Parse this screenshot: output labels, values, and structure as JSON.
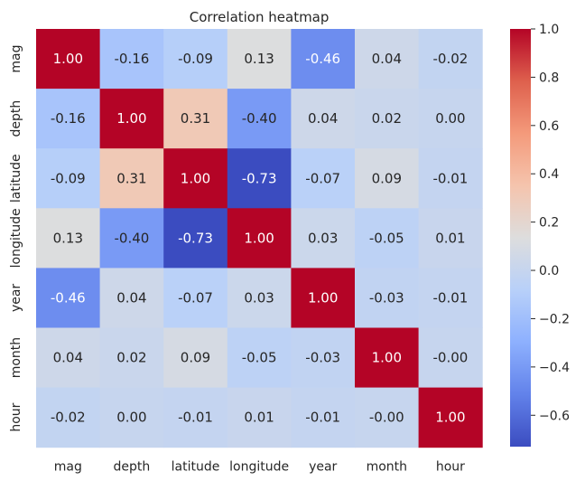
{
  "chart_data": {
    "type": "heatmap",
    "title": "Correlation heatmap",
    "xlabel": "",
    "ylabel": "",
    "x_categories": [
      "mag",
      "depth",
      "latitude",
      "longitude",
      "year",
      "month",
      "hour"
    ],
    "y_categories": [
      "mag",
      "depth",
      "latitude",
      "longitude",
      "year",
      "month",
      "hour"
    ],
    "values": [
      [
        1.0,
        -0.16,
        -0.09,
        0.13,
        -0.46,
        0.04,
        -0.02
      ],
      [
        -0.16,
        1.0,
        0.31,
        -0.4,
        0.04,
        0.02,
        0.0
      ],
      [
        -0.09,
        0.31,
        1.0,
        -0.73,
        -0.07,
        0.09,
        -0.01
      ],
      [
        0.13,
        -0.4,
        -0.73,
        1.0,
        0.03,
        -0.05,
        0.01
      ],
      [
        -0.46,
        0.04,
        -0.07,
        0.03,
        1.0,
        -0.03,
        -0.01
      ],
      [
        0.04,
        0.02,
        0.09,
        -0.05,
        -0.03,
        1.0,
        -0.0
      ],
      [
        -0.02,
        0.0,
        -0.01,
        0.01,
        -0.01,
        -0.0,
        1.0
      ]
    ],
    "value_format": "2 decimals",
    "colormap": "coolwarm",
    "colorbar": {
      "vmin": -0.73,
      "vmax": 1.0,
      "ticks": [
        1.0,
        0.8,
        0.6,
        0.4,
        0.2,
        0.0,
        -0.2,
        -0.4,
        -0.6
      ],
      "tick_labels": [
        "1.0",
        "0.8",
        "0.6",
        "0.4",
        "0.2",
        "0.0",
        "−0.2",
        "−0.4",
        "−0.6"
      ]
    },
    "grid": false,
    "legend": "colorbar-right"
  }
}
